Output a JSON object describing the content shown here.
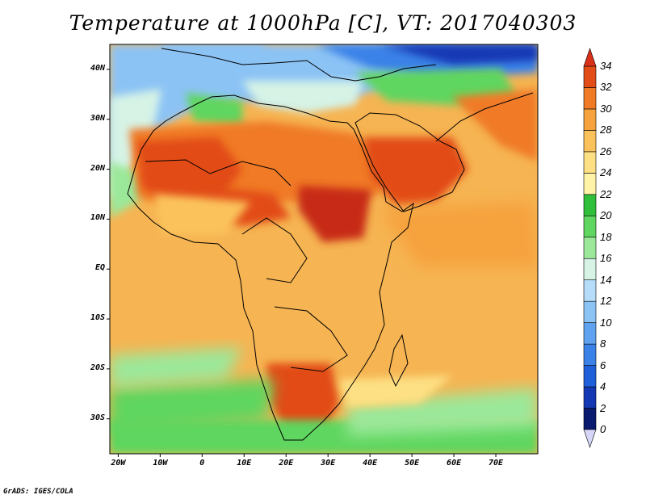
{
  "title": "Temperature at 1000hPa [C], VT: 2017040303",
  "credit": "GrADS: IGES/COLA",
  "map": {
    "projection": "lat-lon",
    "lon_range": [
      -22,
      80
    ],
    "lat_range": [
      -37,
      45
    ],
    "lat_ticks": [
      {
        "value": 40,
        "label": "40N"
      },
      {
        "value": 30,
        "label": "30N"
      },
      {
        "value": 20,
        "label": "20N"
      },
      {
        "value": 10,
        "label": "10N"
      },
      {
        "value": 0,
        "label": "EQ"
      },
      {
        "value": -10,
        "label": "10S"
      },
      {
        "value": -20,
        "label": "20S"
      },
      {
        "value": -30,
        "label": "30S"
      }
    ],
    "lon_ticks": [
      {
        "value": -20,
        "label": "20W"
      },
      {
        "value": -10,
        "label": "10W"
      },
      {
        "value": 0,
        "label": "0"
      },
      {
        "value": 10,
        "label": "10E"
      },
      {
        "value": 20,
        "label": "20E"
      },
      {
        "value": 30,
        "label": "30E"
      },
      {
        "value": 40,
        "label": "40E"
      },
      {
        "value": 50,
        "label": "50E"
      },
      {
        "value": 60,
        "label": "60E"
      },
      {
        "value": 70,
        "label": "70E"
      }
    ]
  },
  "colorbar": {
    "levels": [
      "0",
      "2",
      "4",
      "6",
      "8",
      "10",
      "12",
      "14",
      "16",
      "18",
      "20",
      "22",
      "24",
      "26",
      "28",
      "30",
      "32",
      "34"
    ],
    "colors": [
      "#0a1a6e",
      "#1438b4",
      "#1f5fd9",
      "#3b82e8",
      "#5fa3f0",
      "#8cc3f5",
      "#b5dcf8",
      "#d6f3e6",
      "#9be89a",
      "#5fd65f",
      "#2fbf3a",
      "#fff3a8",
      "#fde083",
      "#fbc25b",
      "#f6a23d",
      "#f07a26",
      "#e24c17",
      "#c72a12",
      "#9e1a0e"
    ],
    "under_color": "#d6d6f8",
    "over_color": "#d9301a"
  }
}
